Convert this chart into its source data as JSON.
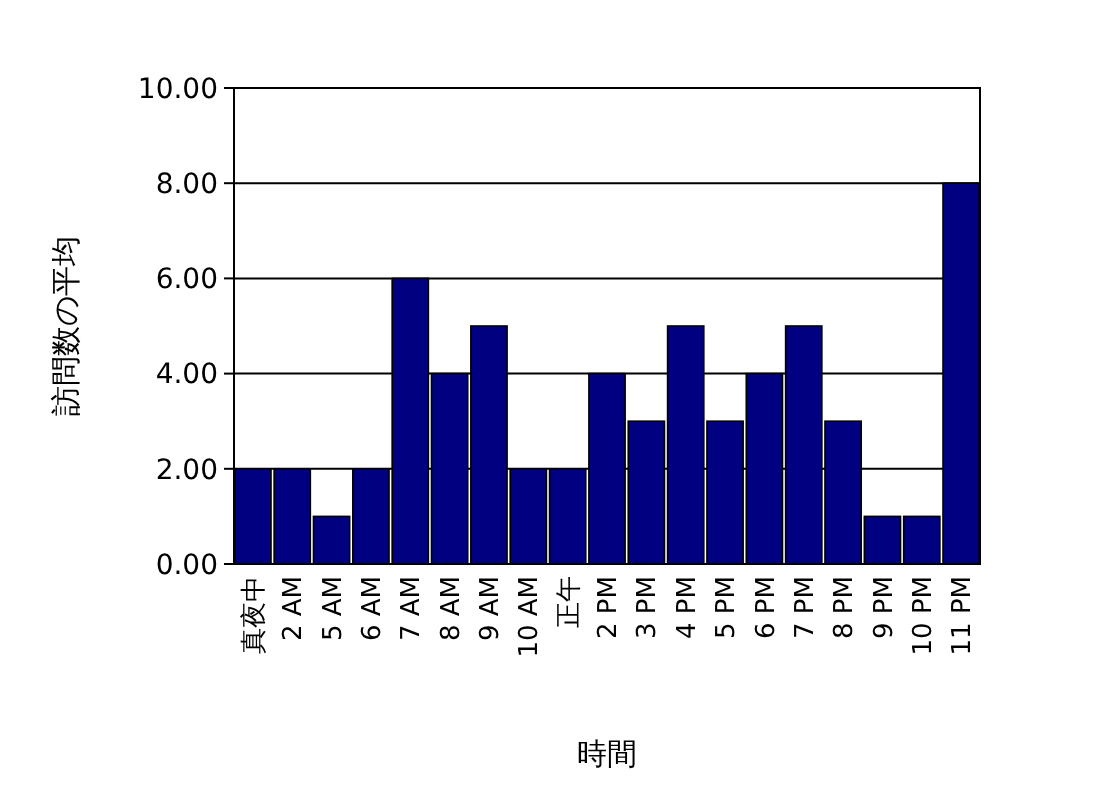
{
  "chart_data": {
    "type": "bar",
    "xlabel": "時間",
    "ylabel": "訪問数の平均",
    "categories": [
      "真夜中",
      "2 AM",
      "5 AM",
      "6 AM",
      "7 AM",
      "8 AM",
      "9 AM",
      "10 AM",
      "正午",
      "2 PM",
      "3 PM",
      "4 PM",
      "5 PM",
      "6 PM",
      "7 PM",
      "8 PM",
      "9 PM",
      "10 PM",
      "11 PM"
    ],
    "values": [
      2,
      2,
      1,
      2,
      6,
      4,
      5,
      2,
      2,
      4,
      3,
      5,
      3,
      4,
      5,
      3,
      1,
      1,
      8
    ],
    "color": "#000080",
    "ylim": [
      0,
      10
    ],
    "yticks": [
      {
        "value": 0,
        "label": "0.00"
      },
      {
        "value": 2,
        "label": "2.00"
      },
      {
        "value": 4,
        "label": "4.00"
      },
      {
        "value": 6,
        "label": "6.00"
      },
      {
        "value": 8,
        "label": "8.00"
      },
      {
        "value": 10,
        "label": "10.00"
      }
    ],
    "grid": "y"
  }
}
